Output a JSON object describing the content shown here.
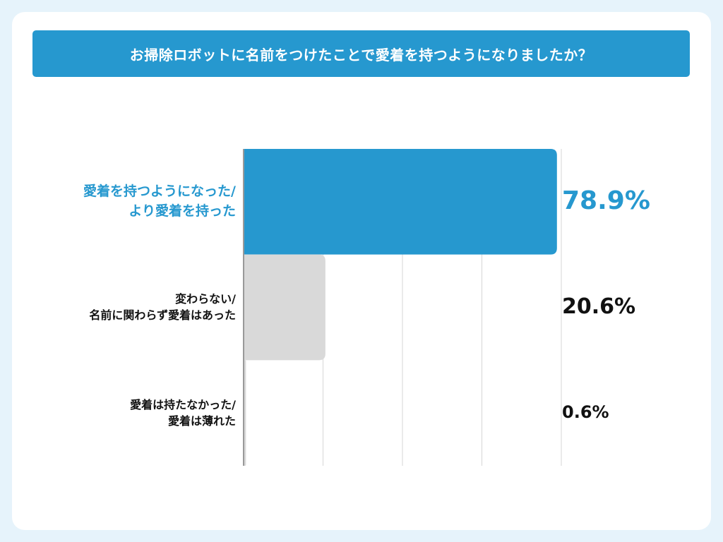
{
  "title": "お掃除ロボットに名前をつけたことで愛着を持つようになりましたか？",
  "colors": {
    "background": "#e6f3fb",
    "title_bar": "#2698cf",
    "highlight": "#2698cf",
    "bar_secondary": "#d9d9d9",
    "grid": "#d6d6d6"
  },
  "chart_data": {
    "type": "bar",
    "orientation": "horizontal",
    "categories": [
      [
        "愛着を持つようになった/",
        "より愛着を持った"
      ],
      [
        "変わらない/",
        "名前に関わらず愛着はあった"
      ],
      [
        "愛着は持たなかった/",
        "愛着は薄れた"
      ]
    ],
    "values": [
      78.9,
      20.6,
      0.6
    ],
    "value_labels": [
      "78.9%",
      "20.6%",
      "0.6%"
    ],
    "unit": "%",
    "xlim": [
      0,
      80
    ],
    "grid": true,
    "highlight_index": 0
  }
}
